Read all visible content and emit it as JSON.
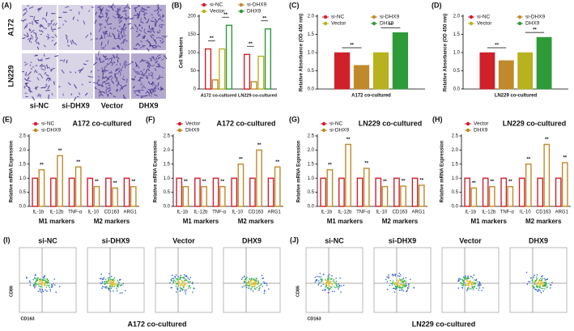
{
  "panel_a": {
    "label": "(A)",
    "rows": [
      "A172",
      "LN229"
    ],
    "columns": [
      "si-NC",
      "si-DHX9",
      "Vector",
      "DHX9"
    ]
  },
  "chart_data": [
    {
      "type": "bar",
      "panel": "(B)",
      "y_label": "Cell Numbers",
      "style": "outline",
      "categories": [
        "A172 co-cultured",
        "LN229 co-cultured"
      ],
      "series": [
        {
          "name": "si-NC",
          "color": "#d0202a",
          "values": [
            110,
            95
          ]
        },
        {
          "name": "si-DHX9",
          "color": "#c08a2a",
          "values": [
            25,
            20
          ]
        },
        {
          "name": "Vector",
          "color": "#b7b21e",
          "values": [
            110,
            90
          ]
        },
        {
          "name": "DHX9",
          "color": "#2e9a3a",
          "values": [
            175,
            165
          ]
        }
      ],
      "significance": [
        "**",
        "**",
        "**",
        "**"
      ],
      "ylim": [
        0,
        200
      ],
      "yticks": [
        0,
        50,
        100,
        150,
        200
      ]
    },
    {
      "type": "bar",
      "panel": "(C)",
      "y_label": "Relative Absorbance (OD 450 nm)",
      "style": "filled",
      "categories": [
        "A172 co-cultured"
      ],
      "series": [
        {
          "name": "si-NC",
          "color": "#d0202a",
          "values": [
            1.0
          ]
        },
        {
          "name": "si-DHX9",
          "color": "#c08a2a",
          "values": [
            0.65
          ]
        },
        {
          "name": "Vector",
          "color": "#b7b21e",
          "values": [
            1.0
          ]
        },
        {
          "name": "DHX9",
          "color": "#2e9a3a",
          "values": [
            1.55
          ]
        }
      ],
      "significance": [
        "**",
        "**"
      ],
      "ylim": [
        0,
        2
      ],
      "yticks": [
        {
          "value": 0,
          "label": "0.0"
        },
        {
          "value": 0.5,
          "label": "0.5"
        },
        {
          "value": 1,
          "label": "1.0"
        },
        {
          "value": 1.5,
          "label": "1.5"
        },
        {
          "value": 2,
          "label": "2.0"
        }
      ]
    },
    {
      "type": "bar",
      "panel": "(D)",
      "y_label": "Relative Absorbance (OD 450 nm)",
      "style": "filled",
      "categories": [
        "LN229 co-cultured"
      ],
      "series": [
        {
          "name": "si-NC",
          "color": "#d0202a",
          "values": [
            1.0
          ]
        },
        {
          "name": "si-DHX9",
          "color": "#c08a2a",
          "values": [
            0.78
          ]
        },
        {
          "name": "Vector",
          "color": "#b7b21e",
          "values": [
            1.0
          ]
        },
        {
          "name": "DHX9",
          "color": "#2e9a3a",
          "values": [
            1.42
          ]
        }
      ],
      "significance": [
        "**",
        "**"
      ],
      "ylim": [
        0,
        2
      ],
      "yticks": [
        {
          "value": 0,
          "label": "0.0"
        },
        {
          "value": 0.5,
          "label": "0.5"
        },
        {
          "value": 1,
          "label": "1.0"
        },
        {
          "value": 1.5,
          "label": "1.5"
        },
        {
          "value": 2,
          "label": "2.0"
        }
      ]
    },
    {
      "type": "bar",
      "panel": "(E)",
      "title": "A172 co-cultured",
      "y_label": "Relative mRNA Expression",
      "style": "outline",
      "categories": [
        "IL-1b",
        "IL-12b",
        "TNF-α",
        "IL-10",
        "CD163",
        "ARG1"
      ],
      "group_labels": [
        "M1 markers",
        "M2 markers"
      ],
      "series": [
        {
          "name": "si-NC",
          "color": "#d0202a",
          "values": [
            1,
            1,
            1,
            1,
            1,
            1
          ]
        },
        {
          "name": "si-DHX9",
          "color": "#c08a2a",
          "values": [
            1.3,
            1.8,
            1.4,
            0.7,
            0.65,
            0.7
          ],
          "annotations": [
            "**",
            "**",
            "**",
            "**",
            "**",
            "**"
          ]
        }
      ],
      "ylim": [
        0,
        2.5
      ],
      "yticks": [
        {
          "value": 0,
          "label": "0.0"
        },
        {
          "value": 0.5,
          "label": "0.5"
        },
        {
          "value": 1,
          "label": "1.0"
        },
        {
          "value": 1.5,
          "label": "1.5"
        },
        {
          "value": 2,
          "label": "2.0"
        },
        {
          "value": 2.5,
          "label": "2.5"
        }
      ]
    },
    {
      "type": "bar",
      "panel": "(F)",
      "title": "A172 co-cultured",
      "y_label": "Relative mRNA Expression",
      "style": "outline",
      "categories": [
        "IL-1b",
        "IL-12b",
        "TNF-α",
        "IL-10",
        "CD163",
        "ARG1"
      ],
      "group_labels": [
        "M1 markers",
        "M2 markers"
      ],
      "series": [
        {
          "name": "Vector",
          "color": "#d0202a",
          "values": [
            1,
            1,
            1,
            1,
            1,
            1
          ]
        },
        {
          "name": "DHX9",
          "color": "#c08a2a",
          "values": [
            0.7,
            0.7,
            0.7,
            1.5,
            2.0,
            1.4
          ],
          "annotations": [
            "**",
            "**",
            "**",
            "**",
            "**",
            "**"
          ]
        }
      ],
      "ylim": [
        0,
        2.5
      ],
      "yticks": [
        {
          "value": 0,
          "label": "0.0"
        },
        {
          "value": 0.5,
          "label": "0.5"
        },
        {
          "value": 1,
          "label": "1.0"
        },
        {
          "value": 1.5,
          "label": "1.5"
        },
        {
          "value": 2,
          "label": "2.0"
        },
        {
          "value": 2.5,
          "label": "2.5"
        }
      ]
    },
    {
      "type": "bar",
      "panel": "(G)",
      "title": "LN229 co-cultured",
      "y_label": "Relative mRNA Expression",
      "style": "outline",
      "categories": [
        "IL-1b",
        "IL-12b",
        "TNF-α",
        "IL-10",
        "CD163",
        "ARG1"
      ],
      "group_labels": [
        "M1 markers",
        "M2 markers"
      ],
      "series": [
        {
          "name": "si-NC",
          "color": "#d0202a",
          "values": [
            1,
            1,
            1,
            1,
            1,
            1
          ]
        },
        {
          "name": "si-DHX9",
          "color": "#c08a2a",
          "values": [
            1.3,
            2.2,
            1.35,
            0.7,
            0.72,
            0.75
          ],
          "annotations": [
            "**",
            "**",
            "**",
            "**",
            "**",
            "**"
          ]
        }
      ],
      "ylim": [
        0,
        2.5
      ],
      "yticks": [
        {
          "value": 0,
          "label": "0.0"
        },
        {
          "value": 0.5,
          "label": "0.5"
        },
        {
          "value": 1,
          "label": "1.0"
        },
        {
          "value": 1.5,
          "label": "1.5"
        },
        {
          "value": 2,
          "label": "2.0"
        },
        {
          "value": 2.5,
          "label": "2.5"
        }
      ]
    },
    {
      "type": "bar",
      "panel": "(H)",
      "title": "LN229 co-cultured",
      "y_label": "Relative mRNA Expression",
      "style": "outline",
      "categories": [
        "IL-1b",
        "IL-12b",
        "TNF-α",
        "IL-10",
        "CD163",
        "ARG1"
      ],
      "group_labels": [
        "M1 markers",
        "M2 markers"
      ],
      "series": [
        {
          "name": "Vector",
          "color": "#d0202a",
          "values": [
            1,
            1,
            1,
            1,
            1,
            1
          ]
        },
        {
          "name": "DHX9",
          "color": "#c08a2a",
          "values": [
            0.65,
            0.7,
            0.7,
            1.5,
            2.2,
            1.55
          ],
          "annotations": [
            "**",
            "**",
            "**",
            "**",
            "**",
            "**"
          ]
        }
      ],
      "ylim": [
        0,
        2.5
      ],
      "yticks": [
        {
          "value": 0,
          "label": "0.0"
        },
        {
          "value": 0.5,
          "label": "0.5"
        },
        {
          "value": 1,
          "label": "1.0"
        },
        {
          "value": 1.5,
          "label": "1.5"
        },
        {
          "value": 2,
          "label": "2.0"
        },
        {
          "value": 2.5,
          "label": "2.5"
        }
      ]
    }
  ],
  "panel_i": {
    "label": "(I)",
    "columns": [
      "si-NC",
      "si-DHX9",
      "Vector",
      "DHX9"
    ],
    "y_axis": "CD86",
    "x_axis": "CD163",
    "caption": "A172 co-cultured"
  },
  "panel_j": {
    "label": "(J)",
    "columns": [
      "si-NC",
      "si-DHX9",
      "Vector",
      "DHX9"
    ],
    "y_axis": "CD86",
    "x_axis": "CD163",
    "caption": "LN229 co-cultured"
  }
}
